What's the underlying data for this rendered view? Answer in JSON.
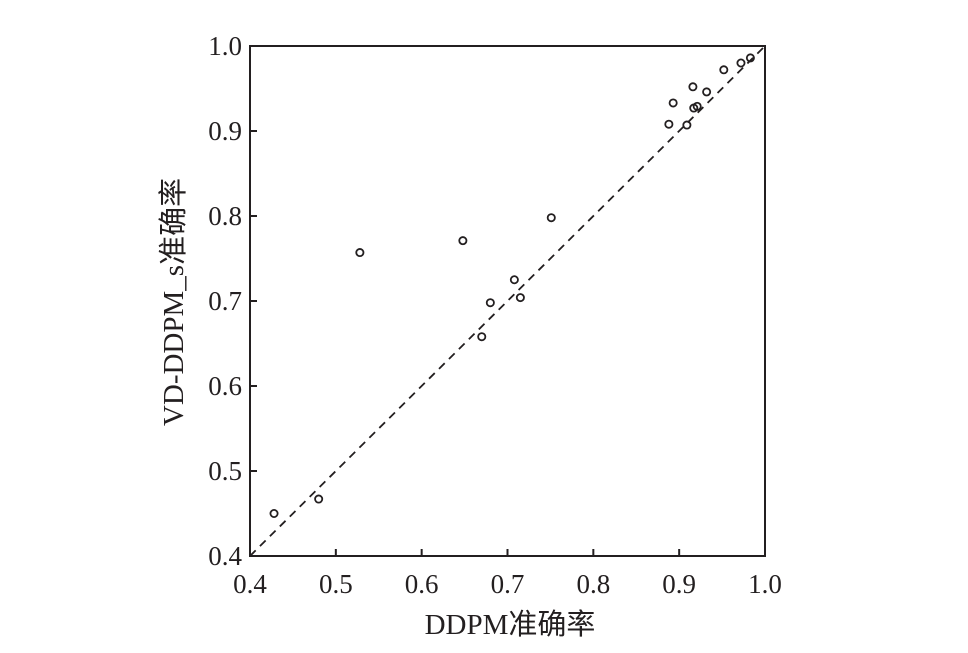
{
  "chart_data": {
    "type": "scatter",
    "title": "",
    "xlabel": "DDPM准确率",
    "ylabel": "VD-DDPM_s准确率",
    "xlim": [
      0.4,
      1.0
    ],
    "ylim": [
      0.4,
      1.0
    ],
    "x_ticks": [
      "0.4",
      "0.5",
      "0.6",
      "0.7",
      "0.8",
      "0.9",
      "1.0"
    ],
    "y_ticks": [
      "0.4",
      "0.5",
      "0.6",
      "0.7",
      "0.8",
      "0.9",
      "1.0"
    ],
    "reference_line": "y = x (dashed)",
    "grid": false,
    "marker": "open circle",
    "color": "#231f20",
    "points": [
      {
        "x": 0.428,
        "y": 0.45
      },
      {
        "x": 0.48,
        "y": 0.467
      },
      {
        "x": 0.528,
        "y": 0.757
      },
      {
        "x": 0.648,
        "y": 0.771
      },
      {
        "x": 0.67,
        "y": 0.658
      },
      {
        "x": 0.68,
        "y": 0.698
      },
      {
        "x": 0.708,
        "y": 0.725
      },
      {
        "x": 0.715,
        "y": 0.704
      },
      {
        "x": 0.751,
        "y": 0.798
      },
      {
        "x": 0.888,
        "y": 0.908
      },
      {
        "x": 0.893,
        "y": 0.933
      },
      {
        "x": 0.909,
        "y": 0.907
      },
      {
        "x": 0.916,
        "y": 0.952
      },
      {
        "x": 0.917,
        "y": 0.927
      },
      {
        "x": 0.921,
        "y": 0.929
      },
      {
        "x": 0.932,
        "y": 0.946
      },
      {
        "x": 0.952,
        "y": 0.972
      },
      {
        "x": 0.972,
        "y": 0.98
      },
      {
        "x": 0.983,
        "y": 0.986
      }
    ]
  }
}
